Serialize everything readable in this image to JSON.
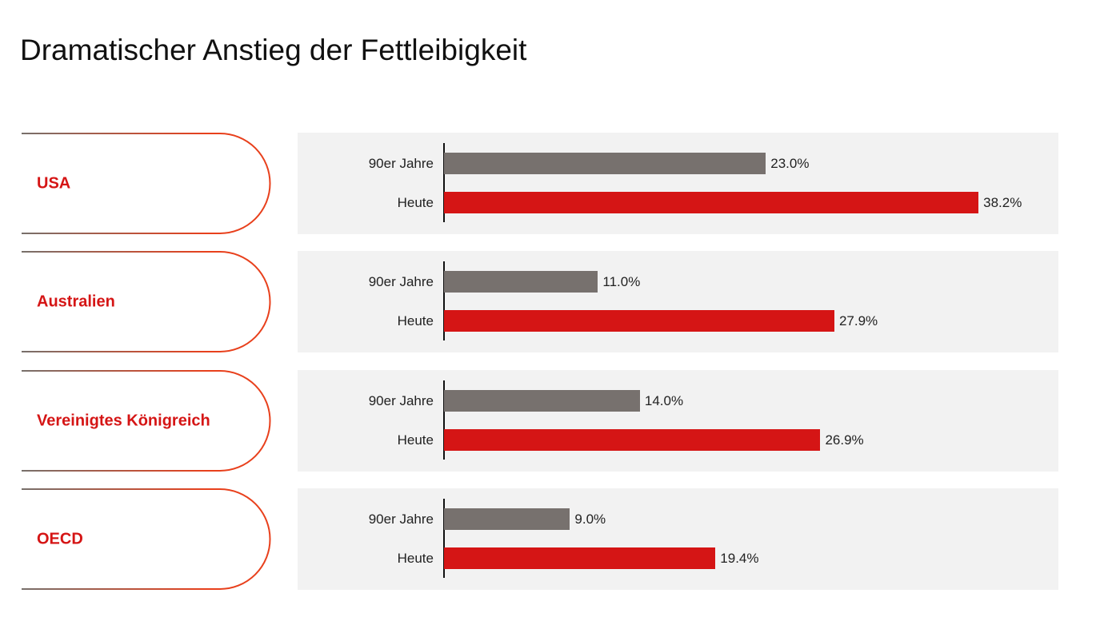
{
  "chart_data": {
    "type": "bar",
    "orientation": "horizontal",
    "title": "Dramatischer Anstieg der Fettleibigkeit",
    "categories": [
      "USA",
      "Australien",
      "Vereinigtes Königreich",
      "OECD"
    ],
    "series": [
      {
        "name": "90er Jahre",
        "color": "#77716e",
        "values": [
          23.0,
          11.0,
          14.0,
          9.0
        ],
        "labels": [
          "23.0%",
          "11.0%",
          "14.0%",
          "9.0%"
        ]
      },
      {
        "name": "Heute",
        "color": "#d51515",
        "values": [
          38.2,
          27.9,
          26.9,
          19.4
        ],
        "labels": [
          "38.2%",
          "27.9%",
          "26.9%",
          "19.4%"
        ]
      }
    ],
    "unit": "%",
    "xlim": [
      0,
      40
    ],
    "grid": false,
    "legend": "none",
    "colors": {
      "country_label": "#d51515",
      "panel_bg": "#f2f2f2",
      "outline_start": "#77706b",
      "outline_end": "#e8401c"
    }
  }
}
